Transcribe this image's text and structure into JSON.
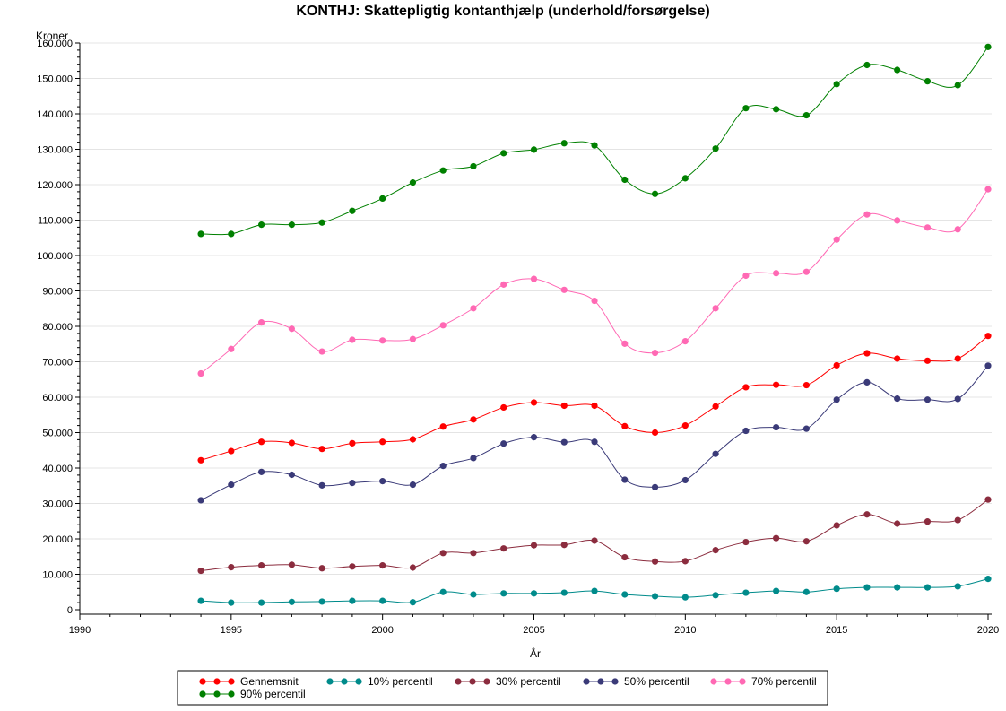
{
  "chart_data": {
    "type": "line",
    "title": "KONTHJ: Skattepligtig kontanthjælp (underhold/forsørgelse)",
    "xlabel": "År",
    "ylabel": "Kroner",
    "xlim": [
      1990,
      2020
    ],
    "ylim": [
      0,
      160000
    ],
    "x_ticks": [
      1990,
      1995,
      2000,
      2005,
      2010,
      2015,
      2020
    ],
    "y_ticks": [
      0,
      10000,
      20000,
      30000,
      40000,
      50000,
      60000,
      70000,
      80000,
      90000,
      100000,
      110000,
      120000,
      130000,
      140000,
      150000,
      160000
    ],
    "x_tick_labels": [
      "1990",
      "1995",
      "2000",
      "2005",
      "2010",
      "2015",
      "2020"
    ],
    "y_tick_labels": [
      "0",
      "10.000",
      "20.000",
      "30.000",
      "40.000",
      "50.000",
      "60.000",
      "70.000",
      "80.000",
      "90.000",
      "100.000",
      "110.000",
      "120.000",
      "130.000",
      "140.000",
      "150.000",
      "160.000"
    ],
    "grid": "horizontal",
    "legend_position": "bottom",
    "x": [
      1994,
      1995,
      1996,
      1997,
      1998,
      1999,
      2000,
      2001,
      2002,
      2003,
      2004,
      2005,
      2006,
      2007,
      2008,
      2009,
      2010,
      2011,
      2012,
      2013,
      2014,
      2015,
      2016,
      2017,
      2018,
      2019,
      2020
    ],
    "series": [
      {
        "name": "Gennemsnit",
        "color": "#ff0000",
        "values": [
          42200,
          44800,
          47400,
          47100,
          45400,
          47000,
          47400,
          48100,
          51700,
          53700,
          57100,
          58500,
          57600,
          57600,
          51800,
          50000,
          52000,
          57400,
          62800,
          63500,
          63400,
          69000,
          72400,
          70900,
          70300,
          70900,
          77300
        ]
      },
      {
        "name": "10% percentil",
        "color": "#008b8b",
        "values": [
          2500,
          2000,
          2000,
          2200,
          2300,
          2500,
          2500,
          2100,
          5000,
          4300,
          4600,
          4600,
          4800,
          5300,
          4300,
          3800,
          3500,
          4100,
          4800,
          5300,
          5000,
          5900,
          6300,
          6300,
          6300,
          6600,
          8700
        ]
      },
      {
        "name": "30% percentil",
        "color": "#8b2c3e",
        "values": [
          11000,
          12000,
          12500,
          12700,
          11700,
          12200,
          12500,
          11900,
          16000,
          16000,
          17300,
          18200,
          18300,
          19500,
          14800,
          13600,
          13700,
          16800,
          19100,
          20200,
          19300,
          23800,
          26900,
          24300,
          24900,
          25300,
          31100
        ]
      },
      {
        "name": "50% percentil",
        "color": "#3a3a78",
        "values": [
          30900,
          35300,
          38900,
          38100,
          35100,
          35800,
          36300,
          35300,
          40600,
          42800,
          46900,
          48700,
          47300,
          47400,
          36700,
          34600,
          36600,
          44000,
          50500,
          51500,
          51100,
          59300,
          64200,
          59600,
          59300,
          59500,
          68900
        ]
      },
      {
        "name": "70% percentil",
        "color": "#ff69b4",
        "values": [
          66700,
          73600,
          81100,
          79300,
          72900,
          76200,
          76000,
          76400,
          80300,
          85100,
          91800,
          93400,
          90300,
          87200,
          75100,
          72500,
          75800,
          85100,
          94300,
          95000,
          95400,
          104500,
          111600,
          109900,
          107900,
          107400,
          118700
        ]
      },
      {
        "name": "90% percentil",
        "color": "#008000",
        "values": [
          106100,
          106100,
          108700,
          108700,
          109300,
          112600,
          116100,
          120600,
          124000,
          125200,
          128900,
          129900,
          131700,
          131100,
          121400,
          117400,
          121800,
          130200,
          141600,
          141300,
          139600,
          148400,
          153800,
          152400,
          149200,
          148100,
          158900
        ]
      }
    ]
  }
}
